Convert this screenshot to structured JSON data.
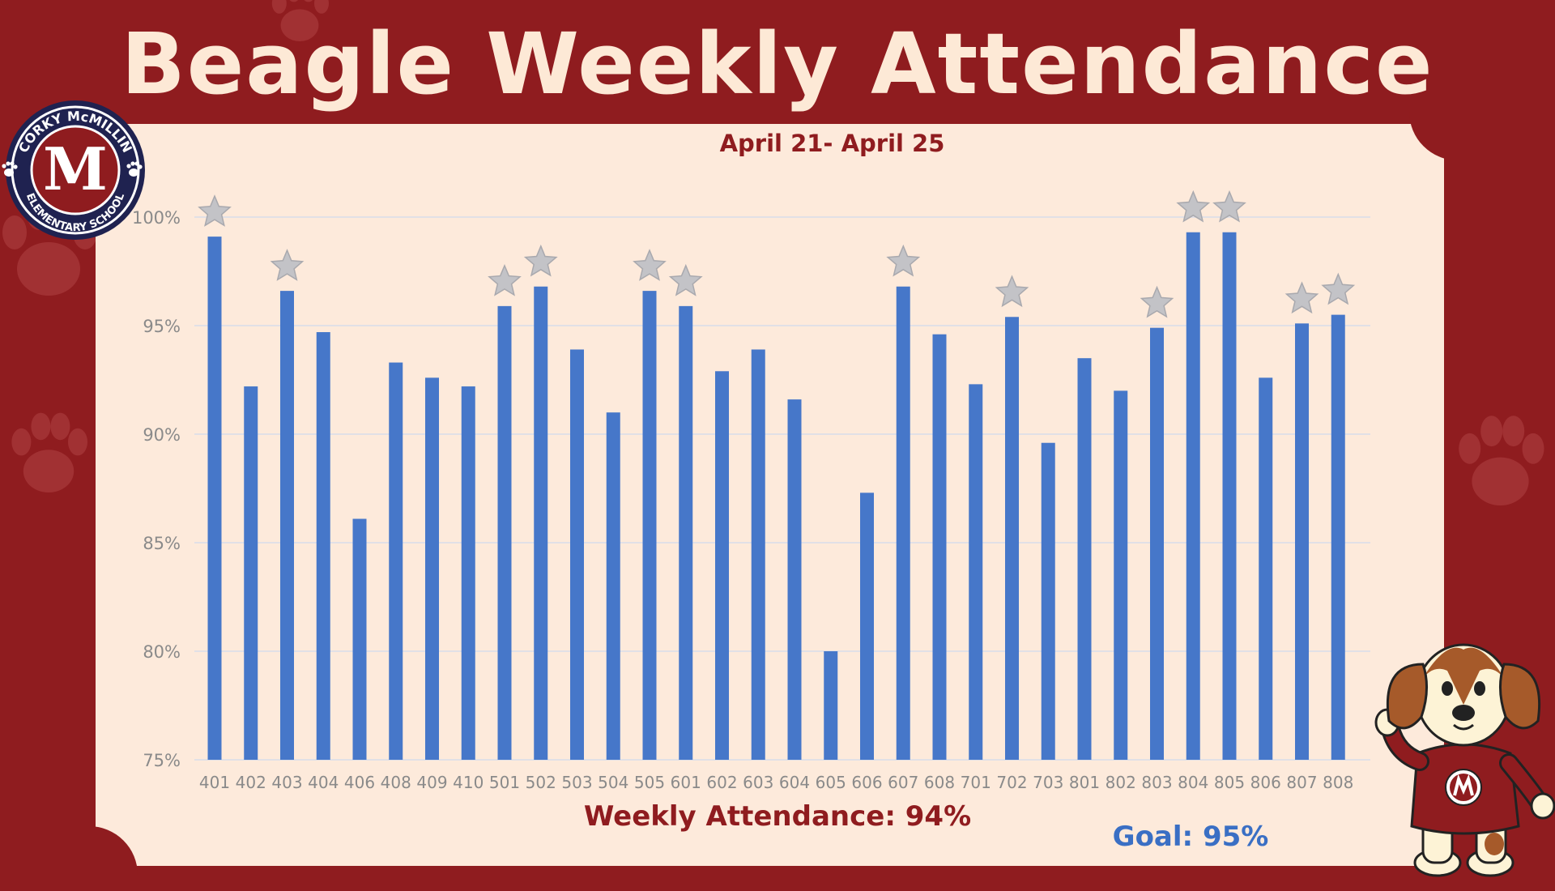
{
  "header": {
    "title": "Beagle Weekly Attendance"
  },
  "logo": {
    "text_top": "CORKY McMILLIN",
    "letter": "M",
    "text_bottom": "ELEMENTARY SCHOOL"
  },
  "summary": {
    "weekly": "Weekly Attendance: 94%",
    "goal": "Goal: 95%"
  },
  "colors": {
    "background": "#8f1c1f",
    "panel": "#fdeadb",
    "bar": "#4677c9",
    "star": "#c3c3c7",
    "title_text": "#fde9d6",
    "goal_text": "#3a6fc4"
  },
  "chart_data": {
    "type": "bar",
    "subtitle": "April 21- April 25",
    "categories": [
      "401",
      "402",
      "403",
      "404",
      "406",
      "408",
      "409",
      "410",
      "501",
      "502",
      "503",
      "504",
      "505",
      "601",
      "602",
      "603",
      "604",
      "605",
      "606",
      "607",
      "608",
      "701",
      "702",
      "703",
      "801",
      "802",
      "803",
      "804",
      "805",
      "806",
      "807",
      "808"
    ],
    "values": [
      99.1,
      92.2,
      96.6,
      94.7,
      86.1,
      93.3,
      92.6,
      92.2,
      95.9,
      96.8,
      93.9,
      91.0,
      96.6,
      95.9,
      92.9,
      93.9,
      91.6,
      80.0,
      87.3,
      96.8,
      94.6,
      92.3,
      95.4,
      89.6,
      93.5,
      92.0,
      94.9,
      99.3,
      99.3,
      92.6,
      95.1,
      95.5
    ],
    "starred": [
      true,
      false,
      true,
      false,
      false,
      false,
      false,
      false,
      true,
      true,
      false,
      false,
      true,
      true,
      false,
      false,
      false,
      false,
      false,
      true,
      false,
      false,
      true,
      false,
      false,
      false,
      true,
      true,
      true,
      false,
      true,
      true
    ],
    "ylim": [
      75,
      100
    ],
    "yticks": [
      "75%",
      "80%",
      "85%",
      "90%",
      "95%",
      "100%"
    ],
    "ytick_values": [
      75,
      80,
      85,
      90,
      95,
      100
    ],
    "grid": true,
    "xlabel": "",
    "ylabel": ""
  }
}
